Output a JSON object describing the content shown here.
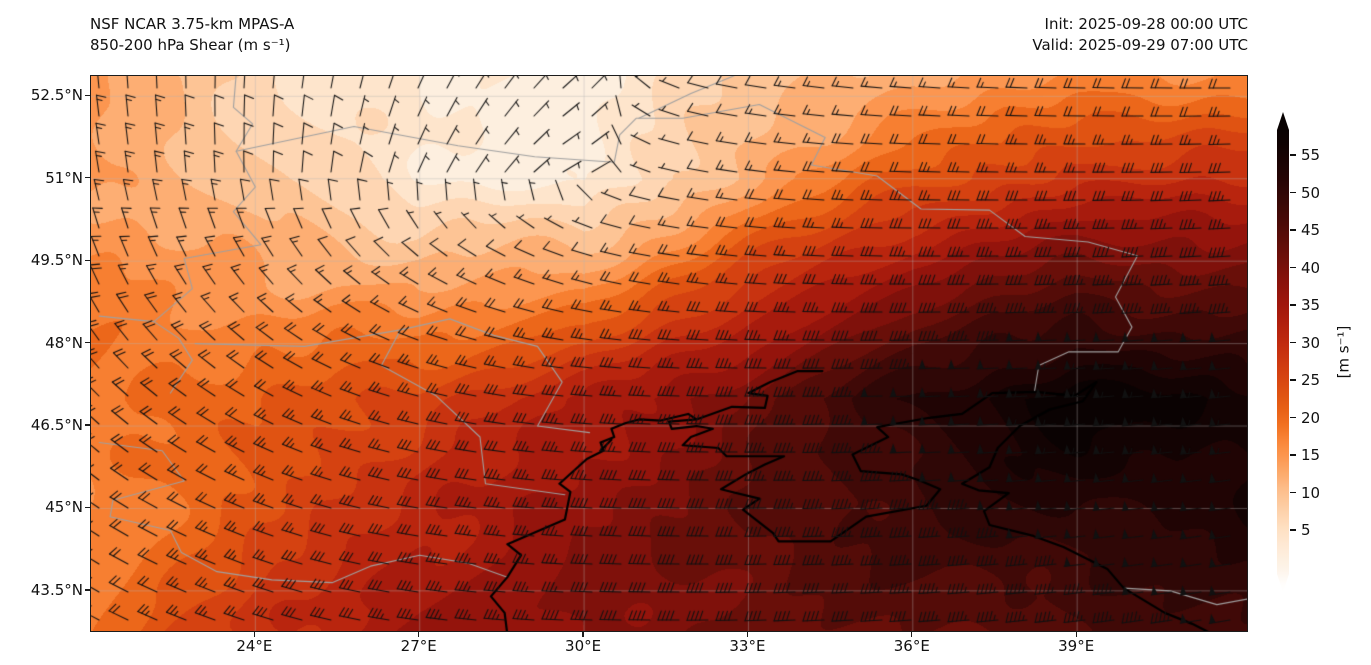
{
  "header": {
    "model_title": "NSF NCAR 3.75-km MPAS-A",
    "field_title": "850-200 hPa Shear (m s⁻¹)",
    "init_text": "Init: 2025-09-28 00:00 UTC",
    "valid_text": "Valid: 2025-09-29 07:00 UTC"
  },
  "chart_data": {
    "type": "heatmap",
    "title": "NSF NCAR 3.75-km MPAS-A — 850-200 hPa Shear (m s⁻¹)",
    "init": "2025-09-28 00:00 UTC",
    "valid": "2025-09-29 07:00 UTC",
    "units": "m s⁻¹",
    "contour_interval_ms": 2.5,
    "x_axis": {
      "ticks": [
        "24°E",
        "27°E",
        "30°E",
        "33°E",
        "36°E",
        "39°E"
      ],
      "values": [
        24,
        27,
        30,
        33,
        36,
        39
      ],
      "range": [
        21.0,
        42.1
      ]
    },
    "y_axis": {
      "ticks": [
        "52.5°N",
        "51°N",
        "49.5°N",
        "48°N",
        "46.5°N",
        "45°N",
        "43.5°N"
      ],
      "values": [
        52.5,
        51,
        49.5,
        48,
        46.5,
        45,
        43.5
      ],
      "range": [
        42.77,
        52.87
      ]
    },
    "colorbar": {
      "label": "[m s⁻¹]",
      "ticks": [
        5,
        10,
        15,
        20,
        25,
        30,
        35,
        40,
        45,
        50,
        55
      ],
      "range": [
        0,
        58.5
      ],
      "extend": "both",
      "stops": [
        [
          0,
          "#ffffff"
        ],
        [
          2.5,
          "#fdf3e8"
        ],
        [
          5,
          "#feead6"
        ],
        [
          7.5,
          "#fedfc1"
        ],
        [
          10,
          "#fdcda4"
        ],
        [
          12.5,
          "#fdba85"
        ],
        [
          15,
          "#fca15f"
        ],
        [
          17.5,
          "#fb8b3f"
        ],
        [
          20,
          "#f27121"
        ],
        [
          22.5,
          "#e55c13"
        ],
        [
          25,
          "#da4a11"
        ],
        [
          27.5,
          "#cf3a10"
        ],
        [
          30,
          "#c12b0f"
        ],
        [
          32.5,
          "#b01f0d"
        ],
        [
          35,
          "#9e160c"
        ],
        [
          37.5,
          "#8a120b"
        ],
        [
          40,
          "#73100a"
        ],
        [
          42.5,
          "#5e0d08"
        ],
        [
          45,
          "#490a07"
        ],
        [
          47.5,
          "#370806"
        ],
        [
          50,
          "#270505"
        ],
        [
          52.5,
          "#190303"
        ],
        [
          55,
          "#0d0202"
        ],
        [
          58.5,
          "#050101"
        ]
      ]
    },
    "wind_barbs": {
      "units": "m s⁻¹",
      "convention": "half=5, full=10, pennant=50"
    },
    "field_grid": {
      "lons": [
        21.0,
        24.0,
        27.0,
        30.0,
        33.0,
        36.0,
        39.0,
        42.1
      ],
      "lats": [
        52.9,
        51.0,
        49.0,
        47.0,
        45.0,
        42.7
      ],
      "speed_ms": [
        [
          14,
          9,
          5,
          4,
          11,
          15,
          17,
          18
        ],
        [
          16,
          12,
          6,
          3,
          15,
          23,
          28,
          30
        ],
        [
          18,
          16,
          14,
          17,
          28,
          38,
          44,
          44
        ],
        [
          20,
          22,
          26,
          33,
          42,
          50,
          57,
          54
        ],
        [
          18,
          24,
          31,
          38,
          42,
          46,
          50,
          52
        ],
        [
          20,
          28,
          35,
          38,
          40,
          42,
          45,
          48
        ]
      ],
      "dir_from_deg": [
        [
          355,
          5,
          25,
          50,
          280,
          275,
          272,
          270
        ],
        [
          350,
          0,
          25,
          70,
          278,
          272,
          270,
          268
        ],
        [
          335,
          320,
          300,
          285,
          275,
          270,
          268,
          266
        ],
        [
          315,
          300,
          285,
          275,
          270,
          268,
          266,
          264
        ],
        [
          305,
          292,
          280,
          274,
          270,
          267,
          264,
          262
        ],
        [
          298,
          288,
          278,
          272,
          268,
          266,
          263,
          260
        ]
      ]
    }
  },
  "map": {
    "coastline_color": "#000000",
    "border_color": "#a0a0a0",
    "graticule_color": "#b4b4b4",
    "barb_color": "#111111",
    "coastlines": [
      [
        [
          28.6,
          42.7
        ],
        [
          28.55,
          43.1
        ],
        [
          28.3,
          43.4
        ],
        [
          28.6,
          43.75
        ],
        [
          28.85,
          44.15
        ],
        [
          28.6,
          44.35
        ],
        [
          29.65,
          44.8
        ],
        [
          29.75,
          45.3
        ],
        [
          29.55,
          45.45
        ],
        [
          30.05,
          45.9
        ],
        [
          30.35,
          46.05
        ],
        [
          30.3,
          46.2
        ],
        [
          30.55,
          46.3
        ],
        [
          30.5,
          46.45
        ],
        [
          30.75,
          46.55
        ],
        [
          31.0,
          46.62
        ],
        [
          31.4,
          46.6
        ],
        [
          31.9,
          46.72
        ],
        [
          32.05,
          46.62
        ],
        [
          31.55,
          46.58
        ],
        [
          31.6,
          46.45
        ],
        [
          32.05,
          46.5
        ],
        [
          32.35,
          46.45
        ],
        [
          31.95,
          46.3
        ],
        [
          31.8,
          46.15
        ],
        [
          32.45,
          46.1
        ],
        [
          32.6,
          45.95
        ],
        [
          33.65,
          45.95
        ],
        [
          33.3,
          45.8
        ],
        [
          32.95,
          45.62
        ],
        [
          32.5,
          45.35
        ],
        [
          32.7,
          45.3
        ],
        [
          33.2,
          45.18
        ],
        [
          32.9,
          44.98
        ],
        [
          33.45,
          44.55
        ],
        [
          33.55,
          44.4
        ],
        [
          34.5,
          44.4
        ],
        [
          35.15,
          44.85
        ],
        [
          36.25,
          45.05
        ],
        [
          36.5,
          45.35
        ],
        [
          36.15,
          45.5
        ],
        [
          35.8,
          45.62
        ],
        [
          35.05,
          45.68
        ],
        [
          34.9,
          45.98
        ],
        [
          35.55,
          46.3
        ],
        [
          35.35,
          46.48
        ],
        [
          36.3,
          46.65
        ],
        [
          36.9,
          46.72
        ],
        [
          37.45,
          47.1
        ],
        [
          38.25,
          47.12
        ],
        [
          38.95,
          47.05
        ],
        [
          39.35,
          47.3
        ],
        [
          39.1,
          46.95
        ],
        [
          38.5,
          46.8
        ],
        [
          37.95,
          46.5
        ],
        [
          37.55,
          46.1
        ],
        [
          37.4,
          45.75
        ],
        [
          36.9,
          45.45
        ],
        [
          37.2,
          45.33
        ],
        [
          37.75,
          45.28
        ],
        [
          37.3,
          44.95
        ],
        [
          37.4,
          44.7
        ],
        [
          38.2,
          44.5
        ],
        [
          38.75,
          44.3
        ],
        [
          39.55,
          43.9
        ],
        [
          39.85,
          43.55
        ],
        [
          40.6,
          43.1
        ],
        [
          41.1,
          42.9
        ],
        [
          41.5,
          42.7
        ]
      ],
      [
        [
          32.05,
          46.62
        ],
        [
          32.7,
          46.85
        ],
        [
          33.3,
          46.83
        ],
        [
          33.35,
          47.05
        ],
        [
          33.0,
          47.1
        ],
        [
          33.4,
          47.3
        ],
        [
          33.9,
          47.5
        ],
        [
          34.35,
          47.5
        ]
      ],
      [
        [
          30.3,
          46.05
        ],
        [
          30.5,
          46.25
        ]
      ]
    ],
    "borders": [
      [
        [
          23.65,
          52.9
        ],
        [
          23.6,
          52.3
        ],
        [
          23.95,
          52.0
        ],
        [
          23.65,
          51.5
        ],
        [
          24.0,
          50.85
        ],
        [
          23.6,
          50.4
        ],
        [
          24.1,
          49.8
        ],
        [
          22.7,
          49.55
        ],
        [
          22.85,
          49.0
        ],
        [
          22.15,
          48.4
        ],
        [
          21.15,
          48.5
        ]
      ],
      [
        [
          23.65,
          51.5
        ],
        [
          25.8,
          51.95
        ],
        [
          27.7,
          51.6
        ],
        [
          29.1,
          51.4
        ],
        [
          30.55,
          51.3
        ],
        [
          30.65,
          51.8
        ],
        [
          30.95,
          52.1
        ],
        [
          31.8,
          52.1
        ],
        [
          33.2,
          52.35
        ],
        [
          34.4,
          51.75
        ],
        [
          34.15,
          51.25
        ],
        [
          35.35,
          51.05
        ],
        [
          36.15,
          50.45
        ],
        [
          37.4,
          50.43
        ],
        [
          38.05,
          49.95
        ],
        [
          39.2,
          49.85
        ],
        [
          40.1,
          49.6
        ],
        [
          39.7,
          48.85
        ],
        [
          40.0,
          48.3
        ],
        [
          39.75,
          47.85
        ],
        [
          38.85,
          47.85
        ],
        [
          38.3,
          47.6
        ],
        [
          38.22,
          47.12
        ]
      ],
      [
        [
          32.8,
          52.9
        ],
        [
          31.95,
          52.55
        ],
        [
          31.0,
          52.1
        ]
      ],
      [
        [
          22.9,
          48.0
        ],
        [
          24.9,
          47.95
        ],
        [
          26.65,
          48.25
        ],
        [
          27.55,
          48.45
        ],
        [
          28.35,
          48.15
        ],
        [
          29.15,
          47.95
        ],
        [
          29.6,
          47.3
        ],
        [
          29.15,
          46.5
        ],
        [
          30.1,
          46.38
        ]
      ],
      [
        [
          26.65,
          48.25
        ],
        [
          26.3,
          47.6
        ],
        [
          27.3,
          47.05
        ],
        [
          28.1,
          46.3
        ],
        [
          28.2,
          45.45
        ],
        [
          29.65,
          45.25
        ]
      ],
      [
        [
          28.6,
          43.75
        ],
        [
          27.9,
          44.0
        ],
        [
          27.0,
          44.15
        ],
        [
          26.1,
          43.95
        ],
        [
          25.4,
          43.65
        ],
        [
          24.3,
          43.7
        ],
        [
          23.3,
          43.85
        ],
        [
          22.65,
          44.2
        ],
        [
          22.45,
          44.6
        ],
        [
          21.35,
          44.85
        ]
      ],
      [
        [
          21.15,
          46.2
        ],
        [
          22.3,
          46.05
        ],
        [
          22.7,
          45.5
        ],
        [
          21.4,
          45.15
        ],
        [
          21.35,
          44.85
        ]
      ],
      [
        [
          39.85,
          43.55
        ],
        [
          40.7,
          43.5
        ],
        [
          41.55,
          43.25
        ],
        [
          42.1,
          43.35
        ]
      ],
      [
        [
          22.15,
          48.4
        ],
        [
          22.6,
          48.1
        ],
        [
          22.85,
          47.7
        ],
        [
          22.45,
          47.1
        ]
      ]
    ]
  }
}
